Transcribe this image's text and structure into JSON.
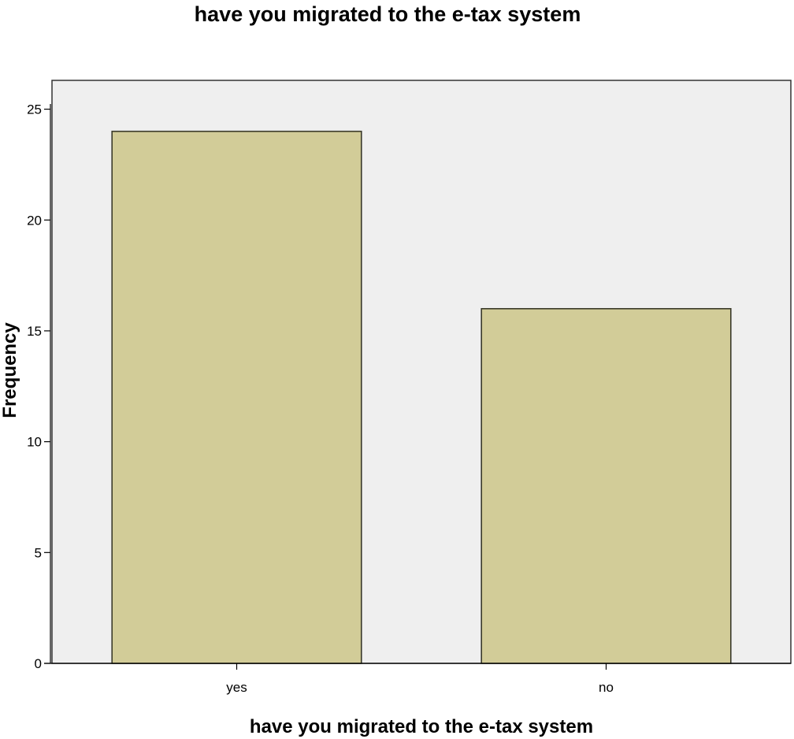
{
  "chart_data": {
    "type": "bar",
    "title": "have you migrated to the e-tax system",
    "xlabel": "have you migrated to the e-tax system",
    "ylabel": "Frequency",
    "categories": [
      "yes",
      "no"
    ],
    "values": [
      24,
      16
    ],
    "ylim": [
      0,
      26.3
    ],
    "yticks": [
      0,
      5,
      10,
      15,
      20,
      25
    ],
    "grid": false,
    "legend": "none",
    "colors": {
      "bar_fill": "#D2CC98",
      "bar_stroke": "#3A3A2A",
      "plot_background": "#EFEFEF",
      "frame": "#333333"
    }
  }
}
